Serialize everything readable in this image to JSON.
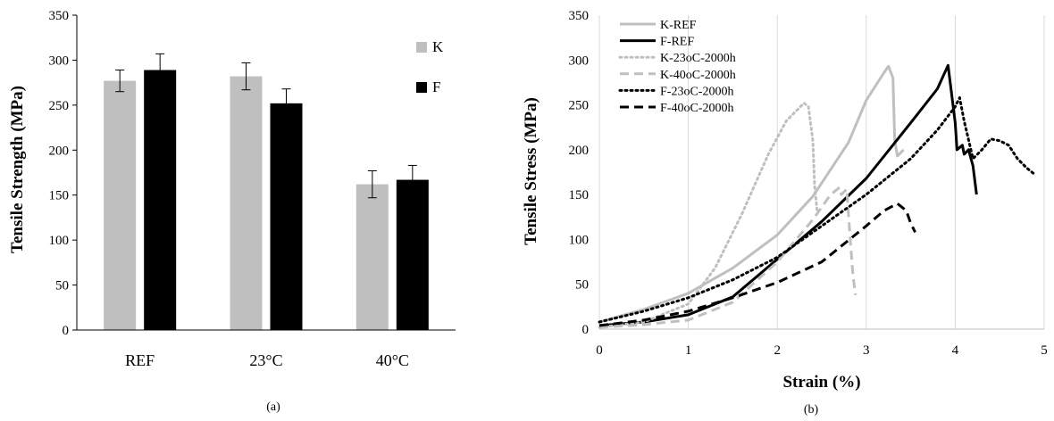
{
  "chart_data": [
    {
      "panel": "(a)",
      "type": "bar",
      "title": "",
      "xlabel": "",
      "ylabel": "Tensile Strength (MPa)",
      "ylim": [
        0,
        350
      ],
      "yticks": [
        0,
        50,
        100,
        150,
        200,
        250,
        300,
        350
      ],
      "categories": [
        "REF",
        "23°C",
        "40°C"
      ],
      "series": [
        {
          "name": "K",
          "color": "#bfbfbf",
          "values": [
            277,
            282,
            162
          ],
          "errors": [
            12,
            15,
            15
          ]
        },
        {
          "name": "F",
          "color": "#000000",
          "values": [
            289,
            252,
            167
          ],
          "errors": [
            18,
            16,
            16
          ]
        }
      ],
      "legend_position": "top-right",
      "caption": "(a)"
    },
    {
      "panel": "(b)",
      "type": "line",
      "title": "",
      "xlabel": "Strain (%)",
      "ylabel": "Tensile Stress (MPa)",
      "xlim": [
        0,
        5
      ],
      "ylim": [
        0,
        350
      ],
      "xticks": [
        0,
        1,
        2,
        3,
        4,
        5
      ],
      "yticks": [
        0,
        50,
        100,
        150,
        200,
        250,
        300,
        350
      ],
      "grid": "vertical",
      "legend_position": "top-left",
      "caption": "(b)",
      "series": [
        {
          "name": "K-REF",
          "color": "#bfbfbf",
          "style": "solid",
          "x": [
            0,
            0.5,
            1.0,
            1.5,
            2.0,
            2.4,
            2.8,
            3.0,
            3.2,
            3.25,
            3.3,
            3.32,
            3.35,
            3.42
          ],
          "y": [
            8,
            22,
            40,
            68,
            105,
            148,
            208,
            255,
            286,
            293,
            280,
            210,
            193,
            200
          ]
        },
        {
          "name": "F-REF",
          "color": "#000000",
          "style": "solid",
          "x": [
            0,
            0.5,
            1.0,
            1.5,
            2.0,
            2.5,
            3.0,
            3.5,
            3.8,
            3.92,
            4.0,
            4.02,
            4.08,
            4.1,
            4.15,
            4.2,
            4.24
          ],
          "y": [
            4,
            8,
            16,
            36,
            78,
            120,
            168,
            230,
            268,
            294,
            230,
            200,
            205,
            195,
            200,
            182,
            150
          ]
        },
        {
          "name": "K-23oC-2000h",
          "color": "#bfbfbf",
          "style": "dotted",
          "x": [
            0,
            0.5,
            1.0,
            1.3,
            1.6,
            1.9,
            2.1,
            2.3,
            2.35,
            2.4,
            2.42,
            2.45
          ],
          "y": [
            2,
            8,
            28,
            68,
            128,
            195,
            232,
            252,
            248,
            210,
            160,
            130
          ]
        },
        {
          "name": "K-40oC-2000h",
          "color": "#bfbfbf",
          "style": "dashed",
          "x": [
            0,
            0.5,
            1.0,
            1.5,
            2.0,
            2.4,
            2.6,
            2.7,
            2.72,
            2.78,
            2.82,
            2.85,
            2.88
          ],
          "y": [
            2,
            5,
            10,
            30,
            75,
            122,
            150,
            158,
            150,
            156,
            100,
            60,
            38
          ]
        },
        {
          "name": "F-23oC-2000h",
          "color": "#000000",
          "style": "dotted",
          "x": [
            0,
            0.5,
            1.0,
            1.5,
            2.0,
            2.5,
            3.0,
            3.5,
            3.8,
            4.0,
            4.05,
            4.1,
            4.2,
            4.3,
            4.4,
            4.5,
            4.6,
            4.7,
            4.8,
            4.9
          ],
          "y": [
            8,
            20,
            35,
            55,
            80,
            115,
            150,
            190,
            222,
            248,
            258,
            232,
            190,
            200,
            212,
            210,
            205,
            190,
            180,
            172
          ]
        },
        {
          "name": "F-40oC-2000h",
          "color": "#000000",
          "style": "dashed",
          "x": [
            0,
            0.5,
            1.0,
            1.5,
            2.0,
            2.5,
            3.0,
            3.2,
            3.35,
            3.45,
            3.5,
            3.55
          ],
          "y": [
            4,
            10,
            20,
            35,
            52,
            75,
            115,
            132,
            140,
            132,
            118,
            108
          ]
        }
      ]
    }
  ]
}
